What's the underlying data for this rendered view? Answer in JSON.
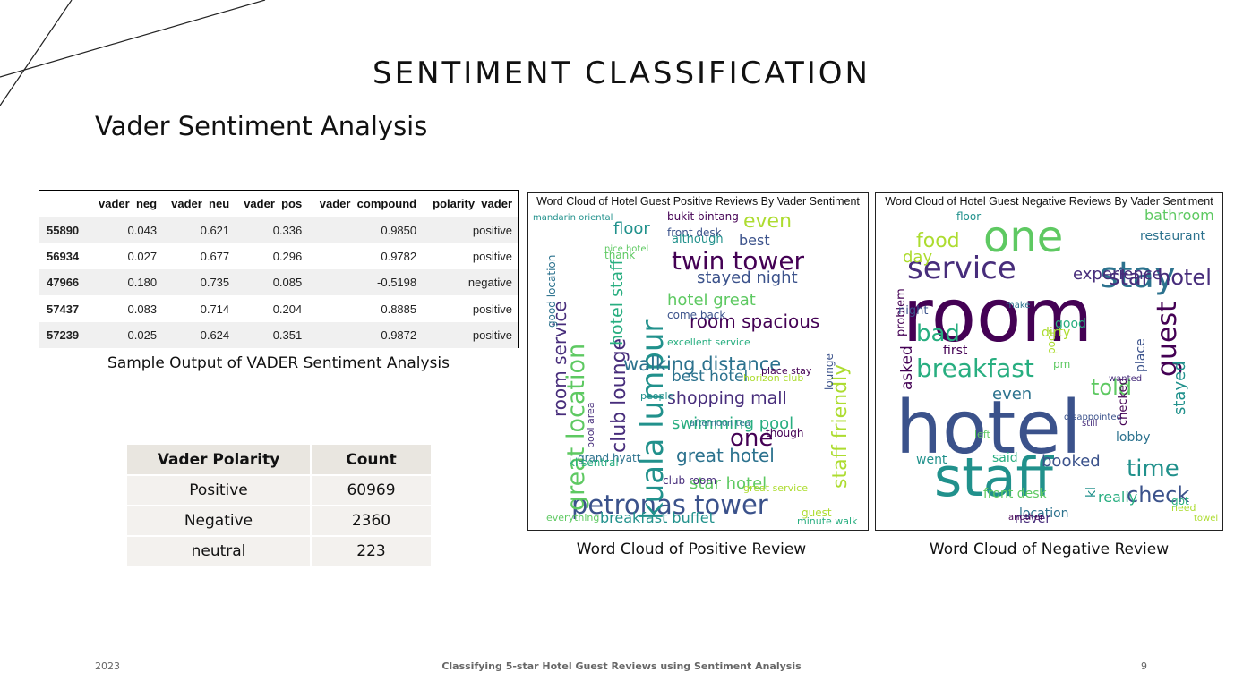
{
  "slide": {
    "title": "SENTIMENT CLASSIFICATION",
    "subtitle": "Vader Sentiment Analysis"
  },
  "vader_table": {
    "columns": [
      "",
      "vader_neg",
      "vader_neu",
      "vader_pos",
      "vader_compound",
      "polarity_vader"
    ],
    "rows": [
      [
        "55890",
        "0.043",
        "0.621",
        "0.336",
        "0.9850",
        "positive"
      ],
      [
        "56934",
        "0.027",
        "0.677",
        "0.296",
        "0.9782",
        "positive"
      ],
      [
        "47966",
        "0.180",
        "0.735",
        "0.085",
        "-0.5198",
        "negative"
      ],
      [
        "57437",
        "0.083",
        "0.714",
        "0.204",
        "0.8885",
        "positive"
      ],
      [
        "57239",
        "0.025",
        "0.624",
        "0.351",
        "0.9872",
        "positive"
      ]
    ],
    "caption": "Sample Output of VADER Sentiment Analysis"
  },
  "polarity_table": {
    "headers": [
      "Vader Polarity",
      "Count"
    ],
    "rows": [
      [
        "Positive",
        "60969"
      ],
      [
        "Negative",
        "2360"
      ],
      [
        "neutral",
        "223"
      ]
    ]
  },
  "positive_cloud": {
    "title": "Word Cloud of Hotel Guest Positive Reviews By Vader Sentiment",
    "caption": "Word Cloud of Positive Review",
    "words": [
      "twin tower",
      "petronas tower",
      "kuala lumpur",
      "great location",
      "walking distance",
      "shopping mall",
      "swimming pool",
      "staff friendly",
      "room spacious",
      "stayed night",
      "breakfast buffet",
      "star hotel",
      "great hotel",
      "club lounge",
      "hotel staff",
      "even",
      "one",
      "best",
      "floor",
      "hotel great",
      "best hotel",
      "room service",
      "excellent service",
      "great service",
      "bukit bintang",
      "front desk",
      "mandarin oriental",
      "nice hotel",
      "grand hyatt",
      "club room",
      "kl sentral",
      "horizon club",
      "place stay",
      "come back",
      "although",
      "thank",
      "good location",
      "pool area",
      "minute walk",
      "guest",
      "though",
      "lounge",
      "people",
      "everything",
      "afternoon tea"
    ],
    "colors": [
      "#440154",
      "#3b528b",
      "#21918c",
      "#5ec962",
      "#2c728e",
      "#472d7b",
      "#28ae80",
      "#addc30"
    ]
  },
  "negative_cloud": {
    "title": "Word Cloud of Hotel Guest Negative Reviews By Vader Sentiment",
    "caption": "Word Cloud of Negative Review",
    "words": [
      "room",
      "hotel",
      "staff",
      "one",
      "stay",
      "service",
      "breakfast",
      "food",
      "guest",
      "check",
      "time",
      "told",
      "even",
      "star hotel",
      "bad",
      "day",
      "asked",
      "booked",
      "stayed",
      "bathroom",
      "restaurant",
      "experience",
      "good",
      "poor",
      "problem",
      "night",
      "went",
      "front desk",
      "location",
      "never",
      "really",
      "dirty",
      "first",
      "disappointed",
      "kl",
      "pm",
      "lobby",
      "still",
      "said",
      "need",
      "checked",
      "place",
      "floor",
      "left",
      "make",
      "wanted",
      "got",
      "towel",
      "another"
    ],
    "colors": [
      "#440154",
      "#3b528b",
      "#21918c",
      "#5ec962",
      "#2c728e",
      "#472d7b",
      "#28ae80",
      "#addc30"
    ]
  },
  "footer": {
    "year": "2023",
    "center": "Classifying 5-star Hotel Guest Reviews using Sentiment Analysis",
    "page": "9"
  }
}
